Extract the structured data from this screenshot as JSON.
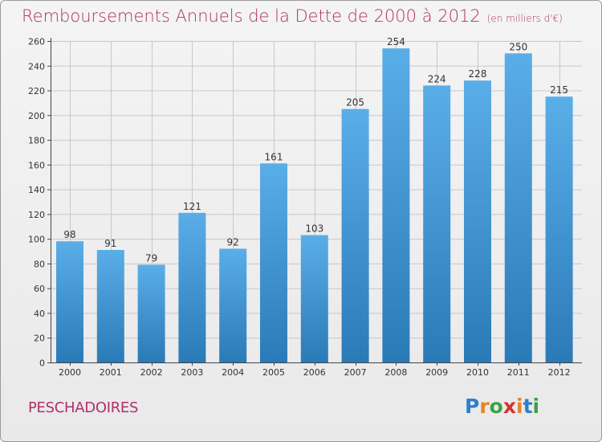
{
  "header": {
    "title": "Remboursements Annuels de la Dette de 2000 à 2012",
    "subtitle": "(en milliers d'€)"
  },
  "footer": {
    "commune": "PESCHADOIRES",
    "logo": {
      "text": "Proxiti",
      "letter_colors": [
        "#2f7fc8",
        "#e0862a",
        "#3da145",
        "#d6322a",
        "#e0862a",
        "#2f7fc8",
        "#3da145"
      ]
    }
  },
  "colors": {
    "title": "#b0306a",
    "bar_top": "#5aaee8",
    "bar_bottom": "#2a7ab8",
    "grid": "#c8c8c8",
    "axis": "#444444"
  },
  "chart_data": {
    "type": "bar",
    "categories": [
      "2000",
      "2001",
      "2002",
      "2003",
      "2004",
      "2005",
      "2006",
      "2007",
      "2008",
      "2009",
      "2010",
      "2011",
      "2012"
    ],
    "values": [
      98,
      91,
      79,
      121,
      92,
      161,
      103,
      205,
      254,
      224,
      228,
      250,
      215
    ],
    "ylim": [
      0,
      260
    ],
    "yticks": [
      0,
      20,
      40,
      60,
      80,
      100,
      120,
      140,
      160,
      180,
      200,
      220,
      240,
      260
    ],
    "grid": true,
    "data_labels": true
  }
}
